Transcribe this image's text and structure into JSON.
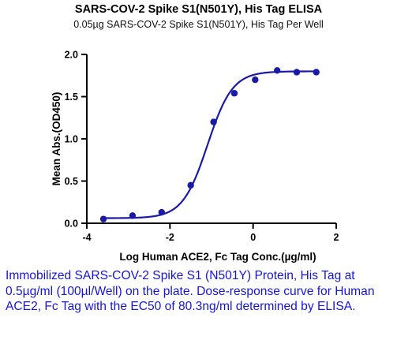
{
  "chart_data": {
    "type": "scatter",
    "title": "SARS-COV-2 Spike S1(N501Y), His Tag ELISA",
    "subtitle": "0.05µg SARS-COV-2 Spike S1(N501Y), His Tag Per Well",
    "xlabel": "Log Human ACE2, Fc Tag Conc.(µg/ml)",
    "ylabel": "Mean Abs.(OD450)",
    "xlim": [
      -4,
      2
    ],
    "ylim": [
      0,
      2.0
    ],
    "x_ticks": [
      "-4",
      "-2",
      "0",
      "2"
    ],
    "y_ticks": [
      "0.0",
      "0.5",
      "1.0",
      "1.5",
      "2.0"
    ],
    "grid": false,
    "colors": {
      "series": "#1a1aa8"
    },
    "series": [
      {
        "points": [
          {
            "x": -3.6,
            "y": 0.05
          },
          {
            "x": -2.9,
            "y": 0.09
          },
          {
            "x": -2.2,
            "y": 0.13
          },
          {
            "x": -1.5,
            "y": 0.45
          },
          {
            "x": -0.95,
            "y": 1.2
          },
          {
            "x": -0.45,
            "y": 1.54
          },
          {
            "x": 0.05,
            "y": 1.7
          },
          {
            "x": 0.58,
            "y": 1.81
          },
          {
            "x": 1.05,
            "y": 1.79
          },
          {
            "x": 1.52,
            "y": 1.79
          }
        ],
        "fit": {
          "model": "4PL",
          "bottom": 0.06,
          "top": 1.8,
          "log_ec50": -1.095,
          "hill": 1.45
        }
      }
    ]
  },
  "caption": "Immobilized SARS-COV-2 Spike S1 (N501Y) Protein, His Tag at 0.5µg/ml (100µl/Well) on the plate. Dose-response curve for Human ACE2, Fc Tag with the EC50 of 80.3ng/ml determined by ELISA."
}
